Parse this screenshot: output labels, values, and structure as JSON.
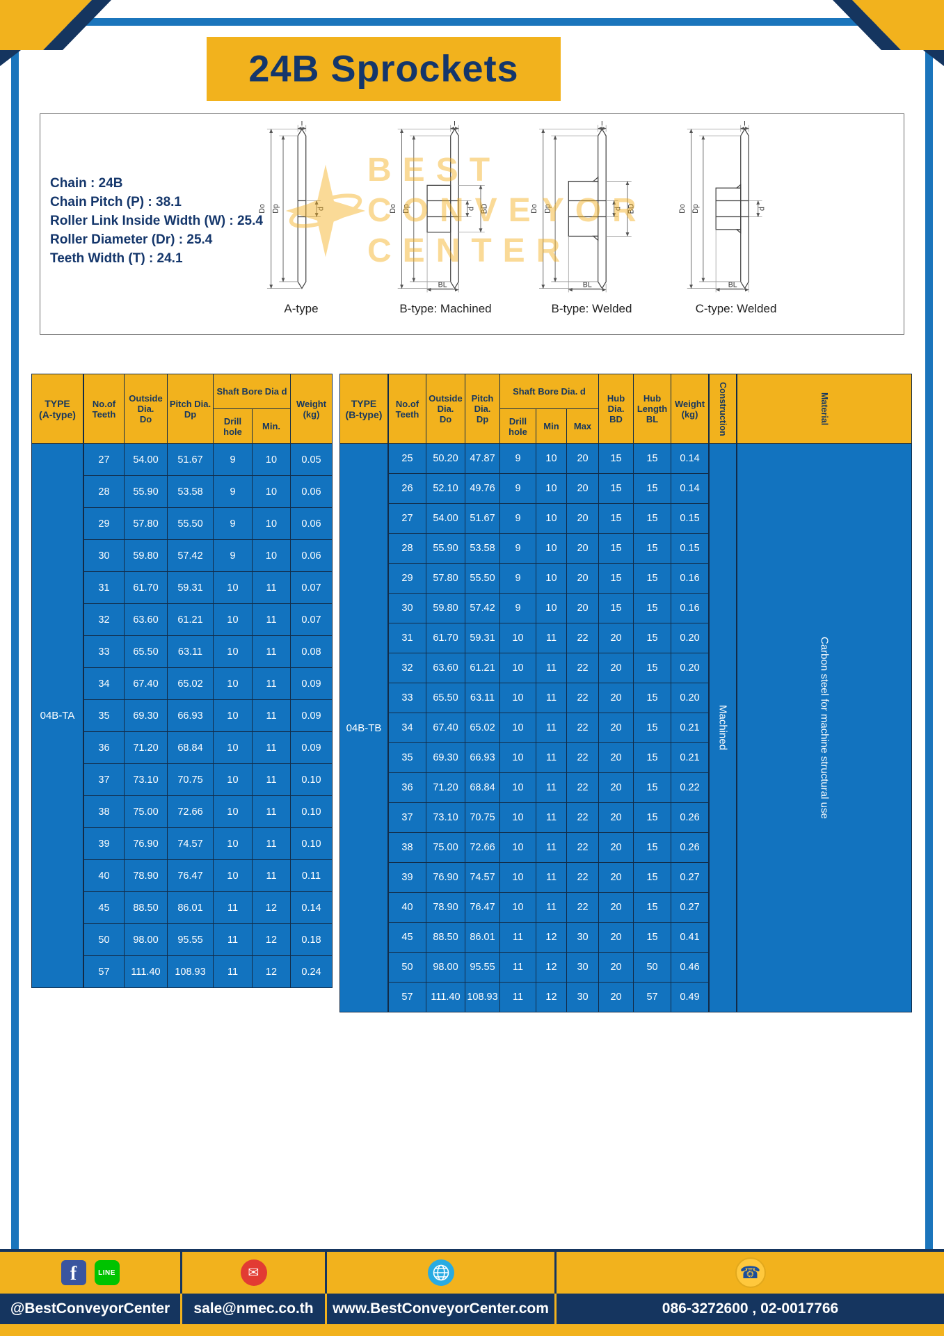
{
  "title": "24B Sprockets",
  "specs": {
    "lines": [
      "Chain  :  24B",
      "Chain Pitch (P)  :  38.1",
      "Roller Link Inside Width (W)  :  25.4",
      "Roller Diameter (Dr)  :  25.4",
      "Teeth Width (T)  :  24.1"
    ]
  },
  "dims": {
    "T": "T",
    "Do": "Do",
    "Dp": "Dp",
    "d": "d",
    "BD": "BD",
    "BL": "BL"
  },
  "diagram_labels": [
    "A-type",
    "B-type: Machined",
    "B-type: Welded",
    "C-type: Welded"
  ],
  "watermark": {
    "line1": "BEST",
    "line2": "CONVEYOR",
    "line3": "CENTER"
  },
  "table_a": {
    "type_label": "04B-TA",
    "headers": {
      "type": "TYPE\n(A-type)",
      "teeth": "No.of\nTeeth",
      "outside": "Outside\nDia.\nDo",
      "pitch": "Pitch Dia.\nDp",
      "shaft_bore": "Shaft Bore Dia d",
      "drill": "Drill hole",
      "min": "Min.",
      "weight": "Weight\n(kg)"
    },
    "rows": [
      [
        "27",
        "54.00",
        "51.67",
        "9",
        "10",
        "0.05"
      ],
      [
        "28",
        "55.90",
        "53.58",
        "9",
        "10",
        "0.06"
      ],
      [
        "29",
        "57.80",
        "55.50",
        "9",
        "10",
        "0.06"
      ],
      [
        "30",
        "59.80",
        "57.42",
        "9",
        "10",
        "0.06"
      ],
      [
        "31",
        "61.70",
        "59.31",
        "10",
        "11",
        "0.07"
      ],
      [
        "32",
        "63.60",
        "61.21",
        "10",
        "11",
        "0.07"
      ],
      [
        "33",
        "65.50",
        "63.11",
        "10",
        "11",
        "0.08"
      ],
      [
        "34",
        "67.40",
        "65.02",
        "10",
        "11",
        "0.09"
      ],
      [
        "35",
        "69.30",
        "66.93",
        "10",
        "11",
        "0.09"
      ],
      [
        "36",
        "71.20",
        "68.84",
        "10",
        "11",
        "0.09"
      ],
      [
        "37",
        "73.10",
        "70.75",
        "10",
        "11",
        "0.10"
      ],
      [
        "38",
        "75.00",
        "72.66",
        "10",
        "11",
        "0.10"
      ],
      [
        "39",
        "76.90",
        "74.57",
        "10",
        "11",
        "0.10"
      ],
      [
        "40",
        "78.90",
        "76.47",
        "10",
        "11",
        "0.11"
      ],
      [
        "45",
        "88.50",
        "86.01",
        "11",
        "12",
        "0.14"
      ],
      [
        "50",
        "98.00",
        "95.55",
        "11",
        "12",
        "0.18"
      ],
      [
        "57",
        "111.40",
        "108.93",
        "11",
        "12",
        "0.24"
      ]
    ]
  },
  "table_b": {
    "type_label": "04B-TB",
    "construction": "Machined",
    "material": "Carbon steel for machine structural use",
    "headers": {
      "type": "TYPE\n(B-type)",
      "teeth": "No.of\nTeeth",
      "outside": "Outside\nDia.\nDo",
      "pitch": "Pitch\nDia.\nDp",
      "shaft_bore": "Shaft Bore Dia.  d",
      "drill": "Drill hole",
      "min": "Min",
      "max": "Max",
      "hub_dia": "Hub\nDia.\nBD",
      "hub_len": "Hub\nLength\nBL",
      "weight": "Weight\n(kg)",
      "construction": "Construction",
      "material": "Material"
    },
    "rows": [
      [
        "25",
        "50.20",
        "47.87",
        "9",
        "10",
        "20",
        "15",
        "15",
        "0.14"
      ],
      [
        "26",
        "52.10",
        "49.76",
        "9",
        "10",
        "20",
        "15",
        "15",
        "0.14"
      ],
      [
        "27",
        "54.00",
        "51.67",
        "9",
        "10",
        "20",
        "15",
        "15",
        "0.15"
      ],
      [
        "28",
        "55.90",
        "53.58",
        "9",
        "10",
        "20",
        "15",
        "15",
        "0.15"
      ],
      [
        "29",
        "57.80",
        "55.50",
        "9",
        "10",
        "20",
        "15",
        "15",
        "0.16"
      ],
      [
        "30",
        "59.80",
        "57.42",
        "9",
        "10",
        "20",
        "15",
        "15",
        "0.16"
      ],
      [
        "31",
        "61.70",
        "59.31",
        "10",
        "11",
        "22",
        "20",
        "15",
        "0.20"
      ],
      [
        "32",
        "63.60",
        "61.21",
        "10",
        "11",
        "22",
        "20",
        "15",
        "0.20"
      ],
      [
        "33",
        "65.50",
        "63.11",
        "10",
        "11",
        "22",
        "20",
        "15",
        "0.20"
      ],
      [
        "34",
        "67.40",
        "65.02",
        "10",
        "11",
        "22",
        "20",
        "15",
        "0.21"
      ],
      [
        "35",
        "69.30",
        "66.93",
        "10",
        "11",
        "22",
        "20",
        "15",
        "0.21"
      ],
      [
        "36",
        "71.20",
        "68.84",
        "10",
        "11",
        "22",
        "20",
        "15",
        "0.22"
      ],
      [
        "37",
        "73.10",
        "70.75",
        "10",
        "11",
        "22",
        "20",
        "15",
        "0.26"
      ],
      [
        "38",
        "75.00",
        "72.66",
        "10",
        "11",
        "22",
        "20",
        "15",
        "0.26"
      ],
      [
        "39",
        "76.90",
        "74.57",
        "10",
        "11",
        "22",
        "20",
        "15",
        "0.27"
      ],
      [
        "40",
        "78.90",
        "76.47",
        "10",
        "11",
        "22",
        "20",
        "15",
        "0.27"
      ],
      [
        "45",
        "88.50",
        "86.01",
        "11",
        "12",
        "30",
        "20",
        "15",
        "0.41"
      ],
      [
        "50",
        "98.00",
        "95.55",
        "11",
        "12",
        "30",
        "20",
        "50",
        "0.46"
      ],
      [
        "57",
        "111.40",
        "108.93",
        "11",
        "12",
        "30",
        "20",
        "57",
        "0.49"
      ]
    ]
  },
  "footer": {
    "social": "@BestConveyorCenter",
    "email": "sale@nmec.co.th",
    "website": "www.BestConveyorCenter.com",
    "phone": "086-3272600 , 02-0017766",
    "glyphs": {
      "facebook": "f",
      "line": "LINE",
      "mail": "✉",
      "phone": "☎"
    }
  },
  "colors": {
    "yellow": "#F2B21D",
    "navy": "#15355F",
    "table_blue": "#1273BF",
    "frame_blue": "#1B75BC"
  }
}
